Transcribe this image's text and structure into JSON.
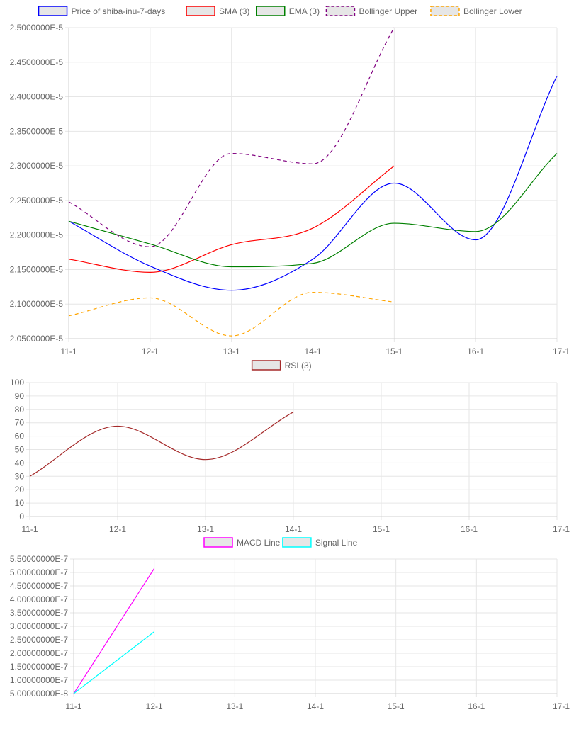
{
  "chart_data": [
    {
      "type": "line",
      "x": [
        "11-1",
        "12-1",
        "13-1",
        "14-1",
        "15-1",
        "16-1",
        "17-1"
      ],
      "ylim": [
        2.05e-05,
        2.5e-05
      ],
      "yticks": [
        "2.5000000E-5",
        "2.4500000E-5",
        "2.4000000E-5",
        "2.3500000E-5",
        "2.3000000E-5",
        "2.2500000E-5",
        "2.2000000E-5",
        "2.1500000E-5",
        "2.1000000E-5",
        "2.0500000E-5"
      ],
      "grid": true,
      "legend_position": "top",
      "series": [
        {
          "name": "Price of shiba-inu-7-days",
          "color": "#0000ff",
          "dash": false,
          "values": [
            2.22e-05,
            2.155e-05,
            2.12e-05,
            2.165e-05,
            2.275e-05,
            2.193e-05,
            2.43e-05
          ]
        },
        {
          "name": "SMA (3)",
          "color": "#ff0000",
          "dash": false,
          "values": [
            2.165e-05,
            2.146e-05,
            2.186e-05,
            2.21e-05,
            2.3e-05,
            null,
            null
          ]
        },
        {
          "name": "EMA (3)",
          "color": "#008000",
          "dash": false,
          "values": [
            2.22e-05,
            2.187e-05,
            2.154e-05,
            2.159e-05,
            2.217e-05,
            2.205e-05,
            2.318e-05
          ]
        },
        {
          "name": "Bollinger Upper",
          "color": "#800080",
          "dash": true,
          "values": [
            2.248e-05,
            2.183e-05,
            2.318e-05,
            2.303e-05,
            2.5e-05,
            null,
            null
          ]
        },
        {
          "name": "Bollinger Lower",
          "color": "#ffa500",
          "dash": true,
          "values": [
            2.083e-05,
            2.109e-05,
            2.054e-05,
            2.117e-05,
            2.103e-05,
            null,
            null
          ]
        }
      ]
    },
    {
      "type": "line",
      "x": [
        "11-1",
        "12-1",
        "13-1",
        "14-1",
        "15-1",
        "16-1",
        "17-1"
      ],
      "ylim": [
        0,
        100
      ],
      "yticks": [
        "100",
        "90",
        "80",
        "70",
        "60",
        "50",
        "40",
        "30",
        "20",
        "10",
        "0"
      ],
      "grid": true,
      "legend_position": "top",
      "series": [
        {
          "name": "RSI (3)",
          "color": "#a52a2a",
          "dash": false,
          "values": [
            30,
            67.5,
            42.5,
            78,
            null,
            null,
            null
          ]
        }
      ]
    },
    {
      "type": "line",
      "x": [
        "11-1",
        "12-1",
        "13-1",
        "14-1",
        "15-1",
        "16-1",
        "17-1"
      ],
      "ylim": [
        5e-08,
        5.5e-07
      ],
      "yticks": [
        "5.50000000E-7",
        "5.00000000E-7",
        "4.50000000E-7",
        "4.00000000E-7",
        "3.50000000E-7",
        "3.00000000E-7",
        "2.50000000E-7",
        "2.00000000E-7",
        "1.50000000E-7",
        "1.00000000E-7",
        "5.00000000E-8"
      ],
      "grid": true,
      "legend_position": "top",
      "series": [
        {
          "name": "MACD Line",
          "color": "#ff00ff",
          "dash": false,
          "values": [
            5e-08,
            5.15e-07,
            null,
            null,
            null,
            null,
            null
          ]
        },
        {
          "name": "Signal Line",
          "color": "#00ffff",
          "dash": false,
          "values": [
            5e-08,
            2.8e-07,
            null,
            null,
            null,
            null,
            null
          ]
        }
      ]
    }
  ]
}
